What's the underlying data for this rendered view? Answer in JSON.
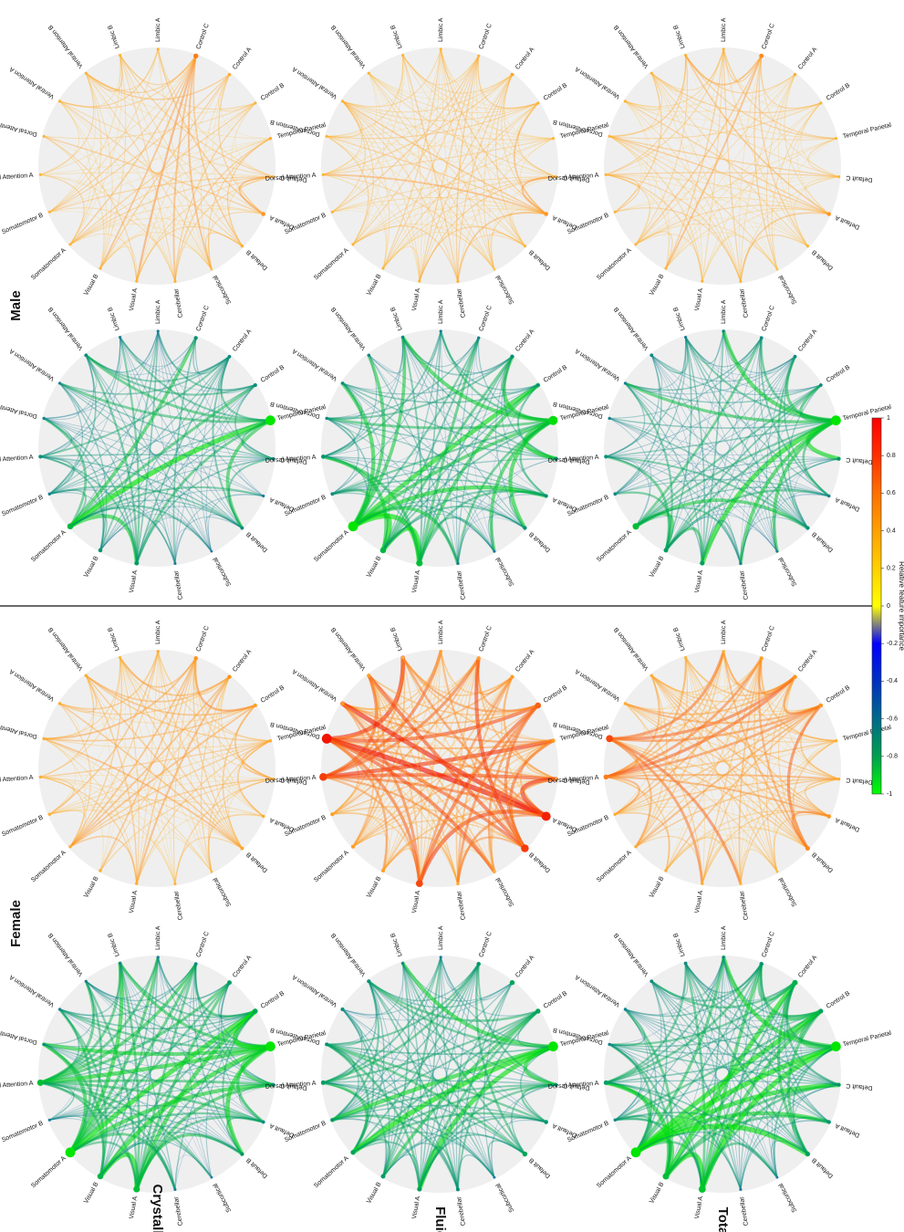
{
  "group_labels": {
    "female": "Female",
    "male": "Male"
  },
  "row_labels": [
    "Crystallised",
    "Fluid",
    "Total"
  ],
  "networks": [
    "Visual A",
    "Visual B",
    "Somatomotor A",
    "Somatomotor B",
    "Dorsal Attention A",
    "Dorsal Attention B",
    "Ventral Attention A",
    "Ventral Attention B",
    "Limbic B",
    "Limbic A",
    "Control C",
    "Control A",
    "Control B",
    "Temporal Parietal",
    "Default C",
    "Default A",
    "Default B",
    "Subcortical",
    "Cerebellar"
  ],
  "colorbar": {
    "title": "Relative feature importance",
    "ticks": [
      "-1",
      "-0.8",
      "-0.6",
      "-0.4",
      "-0.2",
      "0",
      "0.2",
      "0.4",
      "0.6",
      "0.8",
      "1"
    ],
    "stops": [
      "#00ff00",
      "#00a050",
      "#006a8a",
      "#0030c0",
      "#0000ff",
      "#ffff00",
      "#ffd000",
      "#ffa000",
      "#ff7000",
      "#ff3000",
      "#ff0000"
    ]
  },
  "panels": [
    {
      "row": 0,
      "col": 0,
      "sign": "neg",
      "nodes": [
        0.75,
        0.7,
        1,
        0.3,
        0.75,
        0.3,
        0.3,
        0.3,
        0.3,
        0.3,
        0.4,
        0.55,
        0.6,
        1,
        0.4,
        0.4,
        0.4,
        0.2,
        0.3
      ]
    },
    {
      "row": 0,
      "col": 1,
      "sign": "pos",
      "nodes": [
        0.35,
        0.35,
        0.35,
        0.35,
        0.35,
        0.35,
        0.35,
        0.35,
        0.3,
        0.35,
        0.5,
        0.5,
        0.45,
        0.35,
        0.35,
        0.35,
        0.4,
        0.25,
        0.3
      ]
    },
    {
      "row": 0,
      "col": 2,
      "sign": "neg",
      "nodes": [
        0.55,
        0.5,
        0.7,
        0.35,
        0.45,
        0.35,
        0.3,
        0.4,
        0.3,
        0.3,
        0.45,
        0.4,
        0.45,
        1,
        0.4,
        0.3,
        0.4,
        0.2,
        0.3
      ]
    },
    {
      "row": 0,
      "col": 3,
      "sign": "pos",
      "nodes": [
        0.3,
        0.3,
        0.3,
        0.3,
        0.3,
        0.3,
        0.3,
        0.3,
        0.3,
        0.3,
        0.6,
        0.35,
        0.3,
        0.35,
        0.3,
        0.5,
        0.35,
        0.2,
        0.3
      ]
    },
    {
      "row": 1,
      "col": 0,
      "sign": "neg",
      "nodes": [
        0.55,
        0.55,
        0.55,
        0.45,
        0.55,
        0.45,
        0.45,
        0.45,
        0.3,
        0.3,
        0.5,
        0.6,
        0.6,
        1,
        0.4,
        0.5,
        0.6,
        0.25,
        0.45
      ]
    },
    {
      "row": 1,
      "col": 1,
      "sign": "pos",
      "nodes": [
        0.8,
        0.45,
        0.45,
        0.45,
        0.85,
        1,
        0.45,
        0.45,
        0.35,
        0.4,
        0.45,
        0.45,
        0.7,
        0.45,
        0.4,
        0.95,
        0.85,
        0.3,
        0.35
      ]
    },
    {
      "row": 1,
      "col": 2,
      "sign": "neg",
      "nodes": [
        0.75,
        0.7,
        1,
        0.4,
        0.5,
        0.35,
        0.3,
        0.35,
        0.3,
        0.3,
        0.35,
        0.45,
        0.4,
        0.95,
        0.45,
        0.4,
        0.45,
        0.2,
        0.3
      ]
    },
    {
      "row": 1,
      "col": 3,
      "sign": "pos",
      "nodes": [
        0.3,
        0.3,
        0.3,
        0.3,
        0.3,
        0.3,
        0.3,
        0.3,
        0.3,
        0.3,
        0.3,
        0.4,
        0.3,
        0.3,
        0.3,
        0.5,
        0.3,
        0.2,
        0.3
      ]
    },
    {
      "row": 2,
      "col": 0,
      "sign": "neg",
      "nodes": [
        0.8,
        0.75,
        1,
        0.35,
        0.55,
        0.35,
        0.35,
        0.4,
        0.4,
        0.3,
        0.5,
        0.65,
        0.55,
        1,
        0.4,
        0.45,
        0.55,
        0.2,
        0.3
      ]
    },
    {
      "row": 2,
      "col": 1,
      "sign": "pos",
      "nodes": [
        0.35,
        0.35,
        0.35,
        0.35,
        0.6,
        0.8,
        0.35,
        0.35,
        0.3,
        0.35,
        0.45,
        0.5,
        0.5,
        0.35,
        0.35,
        0.5,
        0.55,
        0.25,
        0.3
      ]
    },
    {
      "row": 2,
      "col": 2,
      "sign": "neg",
      "nodes": [
        0.55,
        0.55,
        0.75,
        0.4,
        0.45,
        0.35,
        0.3,
        0.4,
        0.3,
        0.3,
        0.4,
        0.4,
        0.4,
        1,
        0.4,
        0.35,
        0.45,
        0.2,
        0.3
      ]
    },
    {
      "row": 2,
      "col": 3,
      "sign": "pos",
      "nodes": [
        0.3,
        0.3,
        0.3,
        0.3,
        0.3,
        0.3,
        0.3,
        0.3,
        0.3,
        0.3,
        0.55,
        0.35,
        0.3,
        0.3,
        0.3,
        0.5,
        0.3,
        0.2,
        0.3
      ]
    }
  ]
}
